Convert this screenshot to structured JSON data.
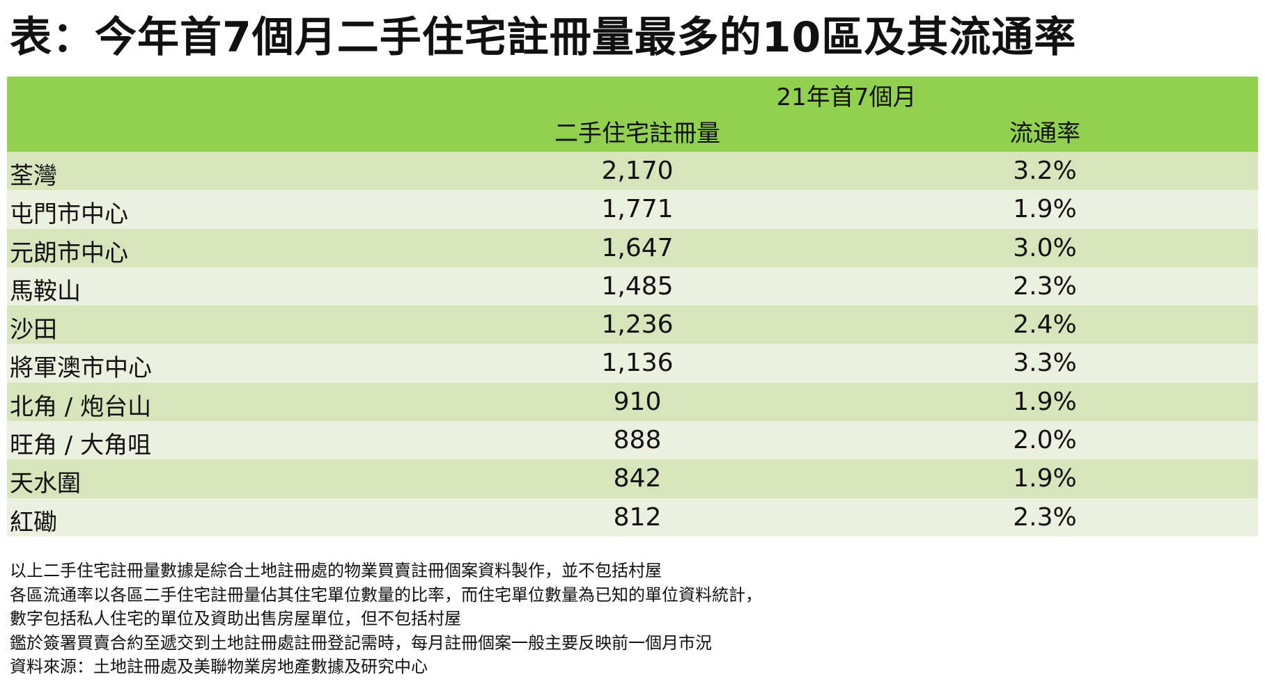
{
  "title": "表：今年首7個月二手住宅註冊量最多的10區及其流通率",
  "header": {
    "period": "21年首7個月",
    "col_registrations": "二手住宅註冊量",
    "col_turnover": "流通率"
  },
  "rows": [
    {
      "district": "荃灣",
      "registrations": "2,170",
      "turnover": "3.2%"
    },
    {
      "district": "屯門市中心",
      "registrations": "1,771",
      "turnover": "1.9%"
    },
    {
      "district": "元朗市中心",
      "registrations": "1,647",
      "turnover": "3.0%"
    },
    {
      "district": "馬鞍山",
      "registrations": "1,485",
      "turnover": "2.3%"
    },
    {
      "district": "沙田",
      "registrations": "1,236",
      "turnover": "2.4%"
    },
    {
      "district": "將軍澳市中心",
      "registrations": "1,136",
      "turnover": "3.3%"
    },
    {
      "district": "北角 / 炮台山",
      "registrations": "910",
      "turnover": "1.9%"
    },
    {
      "district": "旺角 / 大角咀",
      "registrations": "888",
      "turnover": "2.0%"
    },
    {
      "district": "天水圍",
      "registrations": "842",
      "turnover": "1.9%"
    },
    {
      "district": "紅磡",
      "registrations": "812",
      "turnover": "2.3%"
    }
  ],
  "notes": [
    "以上二手住宅註冊量數據是綜合土地註冊處的物業買賣註冊個案資料製作，並不包括村屋",
    "各區流通率以各區二手住宅註冊量佔其住宅單位數量的比率，而住宅單位數量為已知的單位資料統計，",
    "數字包括私人住宅的單位及資助出售房屋單位，但不包括村屋",
    "鑑於簽署買賣合約至遞交到土地註冊處註冊登記需時，每月註冊個案一般主要反映前一個月市況",
    "資料來源：土地註冊處及美聯物業房地產數據及研究中心"
  ],
  "colors": {
    "header_bg": "#92d050",
    "row_dark": "#d8e4bc",
    "row_light": "#ebf1de"
  }
}
